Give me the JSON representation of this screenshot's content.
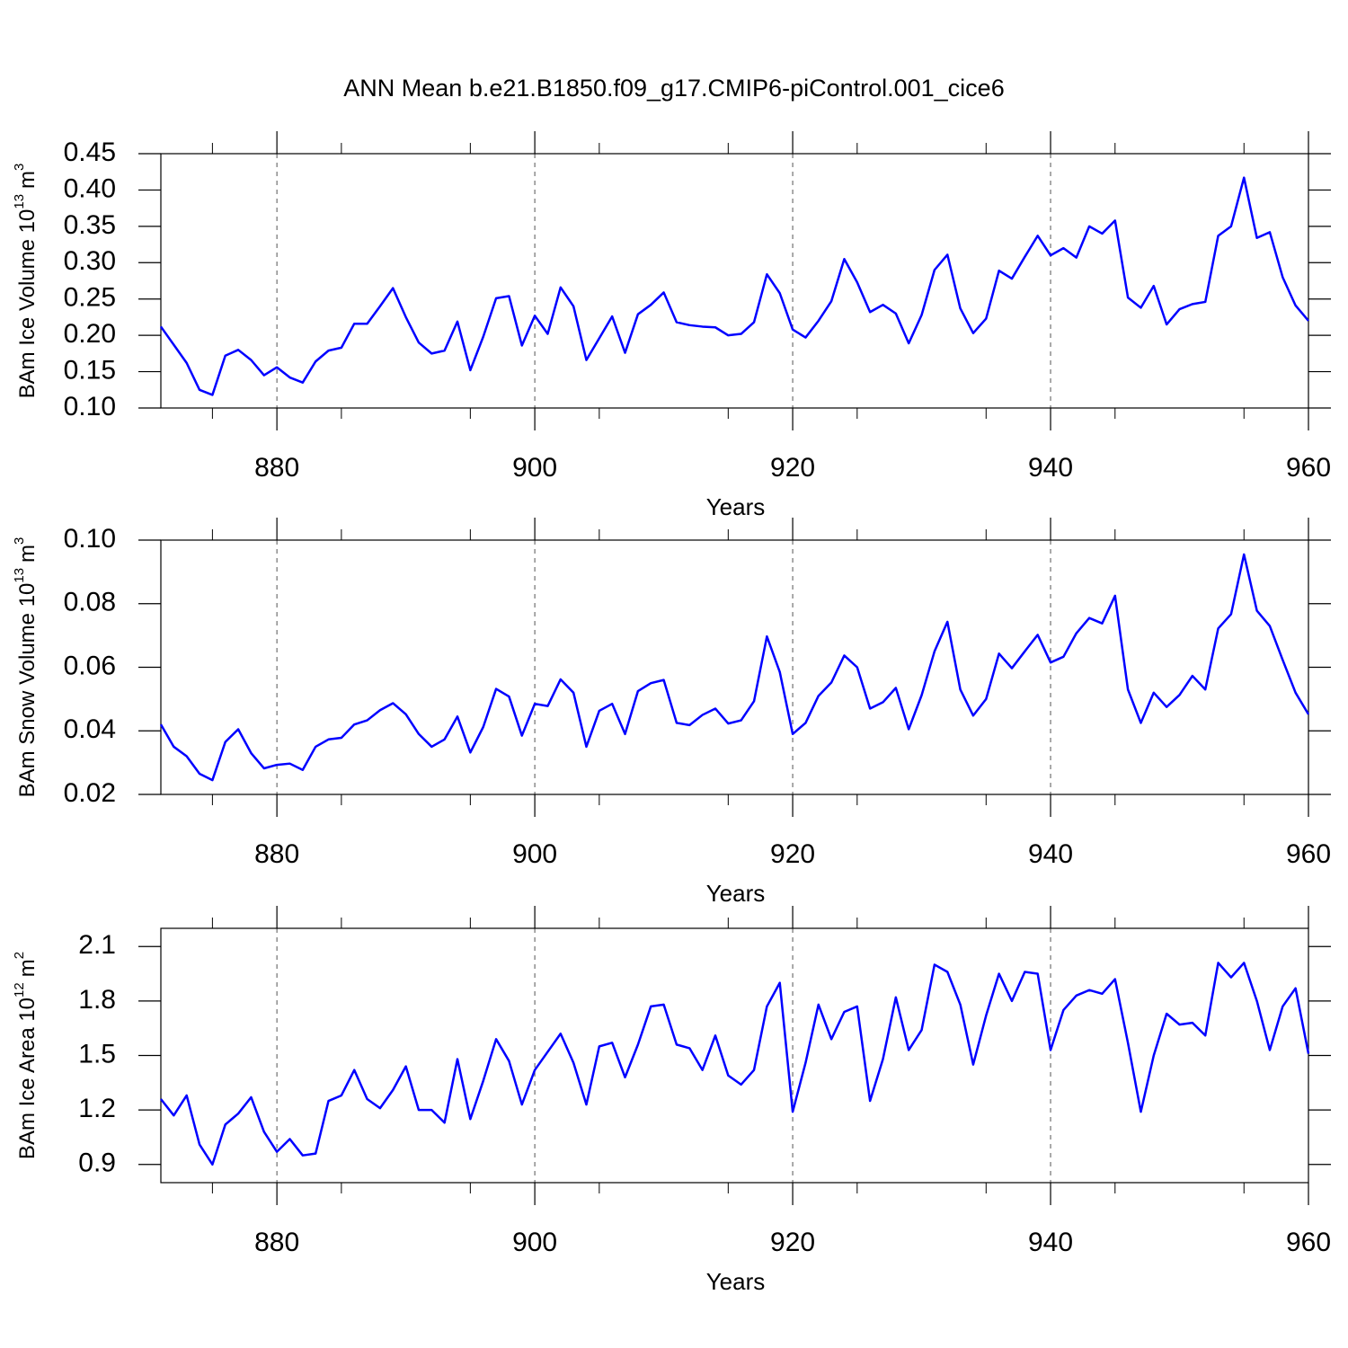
{
  "title": "ANN Mean b.e21.B1850.f09_g17.CMIP6-piControl.001_cice6",
  "chart_data": [
    {
      "type": "line",
      "ylabel": {
        "text": "BAm Ice Volume 10",
        "power": "13",
        "unit": "m",
        "unit_power": "3"
      },
      "xlabel": "Years",
      "xlim": [
        871,
        960
      ],
      "xticks": [
        880,
        900,
        920,
        940,
        960
      ],
      "xminorticks": [
        875,
        885,
        895,
        905,
        915,
        925,
        935,
        945,
        955
      ],
      "ylim": [
        0.1,
        0.45
      ],
      "yticks": [
        {
          "value": 0.1,
          "label": "0.10"
        },
        0.15,
        {
          "value": 0.2,
          "label": "0.20"
        },
        0.25,
        {
          "value": 0.3,
          "label": "0.30"
        },
        0.35,
        {
          "value": 0.4,
          "label": "0.40"
        },
        0.45
      ],
      "grid": "x",
      "color": "#0000ff",
      "x": [
        871,
        872,
        873,
        874,
        875,
        876,
        877,
        878,
        879,
        880,
        881,
        882,
        883,
        884,
        885,
        886,
        887,
        888,
        889,
        890,
        891,
        892,
        893,
        894,
        895,
        896,
        897,
        898,
        899,
        900,
        901,
        902,
        903,
        904,
        905,
        906,
        907,
        908,
        909,
        910,
        911,
        912,
        913,
        914,
        915,
        916,
        917,
        918,
        919,
        920,
        921,
        922,
        923,
        924,
        925,
        926,
        927,
        928,
        929,
        930,
        931,
        932,
        933,
        934,
        935,
        936,
        937,
        938,
        939,
        940,
        941,
        942,
        943,
        944,
        945,
        946,
        947,
        948,
        949,
        950,
        951,
        952,
        953,
        954,
        955,
        956,
        957,
        958,
        959,
        960
      ],
      "values": [
        0.212,
        0.187,
        0.162,
        0.125,
        0.118,
        0.172,
        0.18,
        0.166,
        0.145,
        0.156,
        0.142,
        0.135,
        0.164,
        0.179,
        0.183,
        0.216,
        0.216,
        0.24,
        0.265,
        0.225,
        0.19,
        0.175,
        0.179,
        0.219,
        0.152,
        0.198,
        0.251,
        0.254,
        0.186,
        0.227,
        0.202,
        0.266,
        0.24,
        0.166,
        0.196,
        0.226,
        0.176,
        0.229,
        0.242,
        0.259,
        0.218,
        0.214,
        0.212,
        0.211,
        0.2,
        0.202,
        0.218,
        0.284,
        0.258,
        0.208,
        0.197,
        0.22,
        0.247,
        0.305,
        0.273,
        0.232,
        0.242,
        0.23,
        0.189,
        0.228,
        0.29,
        0.311,
        0.237,
        0.203,
        0.223,
        0.289,
        0.278,
        0.308,
        0.337,
        0.31,
        0.32,
        0.307,
        0.35,
        0.34,
        0.358,
        0.252,
        0.238,
        0.268,
        0.215,
        0.236,
        0.243,
        0.246,
        0.337,
        0.35,
        0.417,
        0.334,
        0.342,
        0.28,
        0.241,
        0.22
      ]
    },
    {
      "type": "line",
      "ylabel": {
        "text": "BAm Snow Volume 10",
        "power": "13",
        "unit": "m",
        "unit_power": "3"
      },
      "xlabel": "Years",
      "xlim": [
        871,
        960
      ],
      "xticks": [
        880,
        900,
        920,
        940,
        960
      ],
      "xminorticks": [
        875,
        885,
        895,
        905,
        915,
        925,
        935,
        945,
        955
      ],
      "ylim": [
        0.02,
        0.1
      ],
      "yticks": [
        0.02,
        0.04,
        0.06,
        0.08,
        {
          "value": 0.1,
          "label": "0.10"
        }
      ],
      "grid": "x",
      "color": "#0000ff",
      "x": [
        871,
        872,
        873,
        874,
        875,
        876,
        877,
        878,
        879,
        880,
        881,
        882,
        883,
        884,
        885,
        886,
        887,
        888,
        889,
        890,
        891,
        892,
        893,
        894,
        895,
        896,
        897,
        898,
        899,
        900,
        901,
        902,
        903,
        904,
        905,
        906,
        907,
        908,
        909,
        910,
        911,
        912,
        913,
        914,
        915,
        916,
        917,
        918,
        919,
        920,
        921,
        922,
        923,
        924,
        925,
        926,
        927,
        928,
        929,
        930,
        931,
        932,
        933,
        934,
        935,
        936,
        937,
        938,
        939,
        940,
        941,
        942,
        943,
        944,
        945,
        946,
        947,
        948,
        949,
        950,
        951,
        952,
        953,
        954,
        955,
        956,
        957,
        958,
        959,
        960
      ],
      "values": [
        0.042,
        0.035,
        0.032,
        0.0265,
        0.0245,
        0.0365,
        0.0405,
        0.033,
        0.0282,
        0.0293,
        0.0297,
        0.0277,
        0.035,
        0.0373,
        0.0378,
        0.042,
        0.0433,
        0.0465,
        0.0487,
        0.0452,
        0.039,
        0.035,
        0.0373,
        0.0445,
        0.0332,
        0.0412,
        0.0532,
        0.0508,
        0.0385,
        0.0485,
        0.0478,
        0.0562,
        0.052,
        0.035,
        0.0463,
        0.0485,
        0.039,
        0.0525,
        0.055,
        0.056,
        0.0425,
        0.0418,
        0.045,
        0.047,
        0.0423,
        0.0433,
        0.0493,
        0.0697,
        0.0585,
        0.039,
        0.0425,
        0.051,
        0.0552,
        0.0637,
        0.06,
        0.047,
        0.049,
        0.0535,
        0.0405,
        0.0512,
        0.065,
        0.0743,
        0.053,
        0.0448,
        0.05,
        0.0643,
        0.0597,
        0.065,
        0.0702,
        0.0615,
        0.0633,
        0.0707,
        0.0755,
        0.0738,
        0.0825,
        0.053,
        0.0425,
        0.052,
        0.0475,
        0.0513,
        0.0573,
        0.053,
        0.0722,
        0.0767,
        0.0955,
        0.0778,
        0.073,
        0.0623,
        0.052,
        0.0452
      ]
    },
    {
      "type": "line",
      "ylabel": {
        "text": "BAm Ice Area 10",
        "power": "12",
        "unit": "m",
        "unit_power": "2"
      },
      "xlabel": "Years",
      "xlim": [
        871,
        960
      ],
      "xticks": [
        880,
        900,
        920,
        940,
        960
      ],
      "xminorticks": [
        875,
        885,
        895,
        905,
        915,
        925,
        935,
        945,
        955
      ],
      "ylim": [
        0.8,
        2.2
      ],
      "yticks": [
        0.9,
        1.2,
        1.5,
        1.8,
        2.1
      ],
      "grid": "x",
      "color": "#0000ff",
      "x": [
        871,
        872,
        873,
        874,
        875,
        876,
        877,
        878,
        879,
        880,
        881,
        882,
        883,
        884,
        885,
        886,
        887,
        888,
        889,
        890,
        891,
        892,
        893,
        894,
        895,
        896,
        897,
        898,
        899,
        900,
        901,
        902,
        903,
        904,
        905,
        906,
        907,
        908,
        909,
        910,
        911,
        912,
        913,
        914,
        915,
        916,
        917,
        918,
        919,
        920,
        921,
        922,
        923,
        924,
        925,
        926,
        927,
        928,
        929,
        930,
        931,
        932,
        933,
        934,
        935,
        936,
        937,
        938,
        939,
        940,
        941,
        942,
        943,
        944,
        945,
        946,
        947,
        948,
        949,
        950,
        951,
        952,
        953,
        954,
        955,
        956,
        957,
        958,
        959,
        960
      ],
      "values": [
        1.26,
        1.17,
        1.28,
        1.01,
        0.9,
        1.12,
        1.18,
        1.27,
        1.08,
        0.97,
        1.04,
        0.95,
        0.96,
        1.25,
        1.28,
        1.42,
        1.26,
        1.21,
        1.31,
        1.44,
        1.2,
        1.2,
        1.13,
        1.48,
        1.15,
        1.36,
        1.59,
        1.47,
        1.23,
        1.42,
        1.52,
        1.62,
        1.46,
        1.23,
        1.55,
        1.57,
        1.38,
        1.56,
        1.77,
        1.78,
        1.56,
        1.54,
        1.42,
        1.61,
        1.39,
        1.34,
        1.42,
        1.77,
        1.9,
        1.19,
        1.46,
        1.78,
        1.59,
        1.74,
        1.77,
        1.25,
        1.48,
        1.82,
        1.53,
        1.64,
        2.0,
        1.96,
        1.78,
        1.45,
        1.72,
        1.95,
        1.8,
        1.96,
        1.95,
        1.53,
        1.75,
        1.83,
        1.86,
        1.84,
        1.92,
        1.57,
        1.19,
        1.5,
        1.73,
        1.67,
        1.68,
        1.61,
        2.01,
        1.93,
        2.01,
        1.8,
        1.53,
        1.77,
        1.87,
        1.51
      ]
    }
  ]
}
